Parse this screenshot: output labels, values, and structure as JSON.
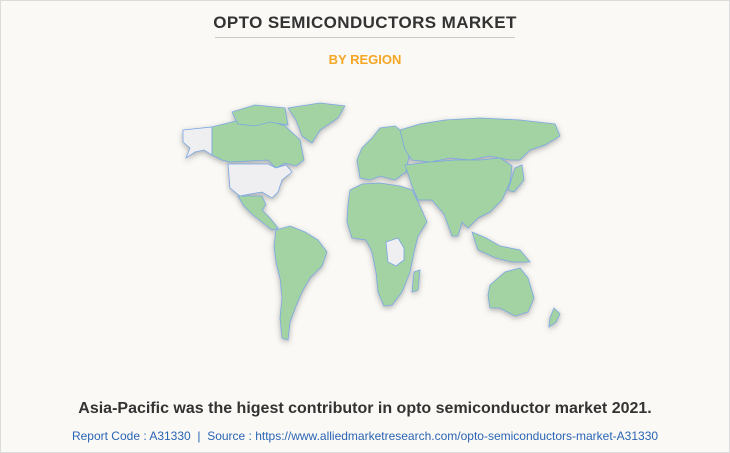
{
  "header": {
    "title": "OPTO SEMICONDUCTORS MARKET",
    "subtitle": "BY REGION"
  },
  "map": {
    "highlight_color": "#a3d3a3",
    "no_data_color": "#efeff2",
    "border_color": "#7aa7e3",
    "no_data_regions": [
      "United States",
      "Alaska",
      "parts of Central Africa"
    ]
  },
  "footer": {
    "caption": "Asia-Pacific was the higest contributor in opto semiconductor market 2021.",
    "report_code": "Report Code : A31330",
    "separator": "|",
    "source": "Source : https://www.alliedmarketresearch.com/opto-semiconductors-market-A31330"
  },
  "colors": {
    "title": "#333333",
    "subtitle": "#f5a623",
    "source": "#2a64b4"
  }
}
